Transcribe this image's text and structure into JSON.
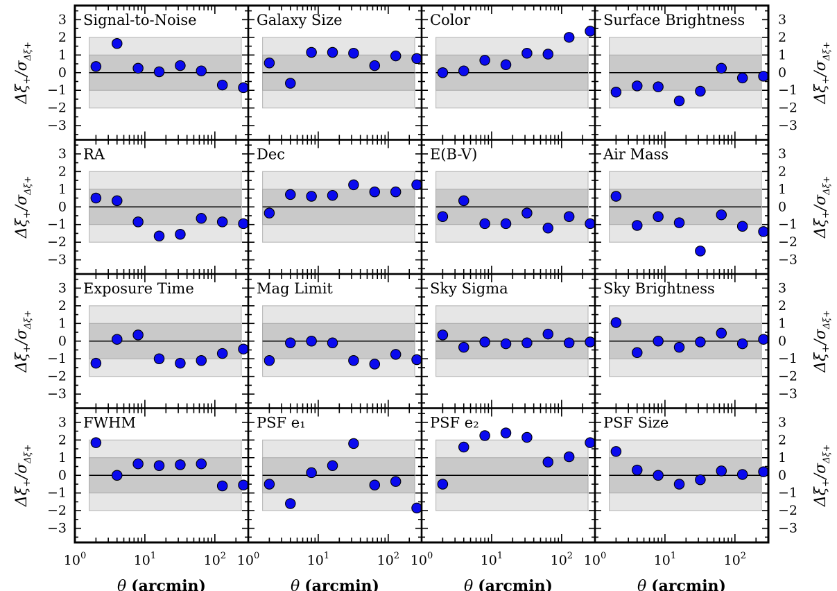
{
  "figure": {
    "xlabel_symbol": "θ",
    "xlabel_text": "(arcmin)",
    "ylabel_parts": {
      "delta": "Δξ",
      "plus": "+",
      "sigma": "/σ",
      "sub": "Δξ+"
    },
    "colors": {
      "marker_fill": "#0a0aee",
      "marker_edge": "#000000",
      "band_1sigma": "#c9c9c9",
      "band_2sigma": "#e6e6e6",
      "zero_line": "#000000"
    }
  },
  "chart_data": [
    {
      "type": "scatter",
      "title": "Signal-to-Noise",
      "x": [
        2,
        4,
        8,
        16,
        32,
        64,
        128,
        256
      ],
      "y": [
        0.35,
        1.65,
        0.25,
        0.05,
        0.4,
        0.1,
        -0.7,
        -0.85
      ],
      "xscale": "log",
      "xlim": [
        1,
        300
      ],
      "ylim": [
        -3.8,
        3.8
      ],
      "bands": [
        1,
        2
      ]
    },
    {
      "type": "scatter",
      "title": "Galaxy Size",
      "x": [
        2,
        4,
        8,
        16,
        32,
        64,
        128,
        256
      ],
      "y": [
        0.55,
        -0.6,
        1.15,
        1.15,
        1.1,
        0.4,
        0.95,
        0.8
      ],
      "xscale": "log",
      "xlim": [
        1,
        300
      ],
      "ylim": [
        -3.8,
        3.8
      ],
      "bands": [
        1,
        2
      ]
    },
    {
      "type": "scatter",
      "title": "Color",
      "x": [
        2,
        4,
        8,
        16,
        32,
        64,
        128,
        256
      ],
      "y": [
        0.0,
        0.1,
        0.7,
        0.45,
        1.1,
        1.05,
        2.0,
        2.35
      ],
      "xscale": "log",
      "xlim": [
        1,
        300
      ],
      "ylim": [
        -3.8,
        3.8
      ],
      "bands": [
        1,
        2
      ]
    },
    {
      "type": "scatter",
      "title": "Surface Brightness",
      "x": [
        2,
        4,
        8,
        16,
        32,
        64,
        128,
        256
      ],
      "y": [
        -1.1,
        -0.75,
        -0.8,
        -1.6,
        -1.05,
        0.25,
        -0.3,
        -0.2
      ],
      "xscale": "log",
      "xlim": [
        1,
        300
      ],
      "ylim": [
        -3.8,
        3.8
      ],
      "bands": [
        1,
        2
      ]
    },
    {
      "type": "scatter",
      "title": "RA",
      "x": [
        2,
        4,
        8,
        16,
        32,
        64,
        128,
        256
      ],
      "y": [
        0.5,
        0.35,
        -0.85,
        -1.65,
        -1.55,
        -0.65,
        -0.85,
        -0.95
      ],
      "xscale": "log",
      "xlim": [
        1,
        300
      ],
      "ylim": [
        -3.8,
        3.8
      ],
      "bands": [
        1,
        2
      ]
    },
    {
      "type": "scatter",
      "title": "Dec",
      "x": [
        2,
        4,
        8,
        16,
        32,
        64,
        128,
        256
      ],
      "y": [
        -0.35,
        0.7,
        0.6,
        0.65,
        1.25,
        0.85,
        0.85,
        1.25
      ],
      "xscale": "log",
      "xlim": [
        1,
        300
      ],
      "ylim": [
        -3.8,
        3.8
      ],
      "bands": [
        1,
        2
      ]
    },
    {
      "type": "scatter",
      "title": "E(B-V)",
      "x": [
        2,
        4,
        8,
        16,
        32,
        64,
        128,
        256
      ],
      "y": [
        -0.55,
        0.35,
        -0.95,
        -0.95,
        -0.35,
        -1.2,
        -0.55,
        -0.95
      ],
      "xscale": "log",
      "xlim": [
        1,
        300
      ],
      "ylim": [
        -3.8,
        3.8
      ],
      "bands": [
        1,
        2
      ]
    },
    {
      "type": "scatter",
      "title": "Air Mass",
      "x": [
        2,
        4,
        8,
        16,
        32,
        64,
        128,
        256
      ],
      "y": [
        0.6,
        -1.05,
        -0.55,
        -0.9,
        -2.5,
        -0.45,
        -1.1,
        -1.4
      ],
      "xscale": "log",
      "xlim": [
        1,
        300
      ],
      "ylim": [
        -3.8,
        3.8
      ],
      "bands": [
        1,
        2
      ]
    },
    {
      "type": "scatter",
      "title": "Exposure Time",
      "x": [
        2,
        4,
        8,
        16,
        32,
        64,
        128,
        256
      ],
      "y": [
        -1.25,
        0.1,
        0.35,
        -1.0,
        -1.25,
        -1.1,
        -0.7,
        -0.45
      ],
      "xscale": "log",
      "xlim": [
        1,
        300
      ],
      "ylim": [
        -3.8,
        3.8
      ],
      "bands": [
        1,
        2
      ]
    },
    {
      "type": "scatter",
      "title": "Mag Limit",
      "x": [
        2,
        4,
        8,
        16,
        32,
        64,
        128,
        256
      ],
      "y": [
        -1.1,
        -0.1,
        0.0,
        -0.1,
        -1.1,
        -1.3,
        -0.75,
        -1.05
      ],
      "xscale": "log",
      "xlim": [
        1,
        300
      ],
      "ylim": [
        -3.8,
        3.8
      ],
      "bands": [
        1,
        2
      ]
    },
    {
      "type": "scatter",
      "title": "Sky Sigma",
      "x": [
        2,
        4,
        8,
        16,
        32,
        64,
        128,
        256
      ],
      "y": [
        0.35,
        -0.35,
        -0.05,
        -0.15,
        -0.1,
        0.4,
        -0.1,
        -0.05
      ],
      "xscale": "log",
      "xlim": [
        1,
        300
      ],
      "ylim": [
        -3.8,
        3.8
      ],
      "bands": [
        1,
        2
      ]
    },
    {
      "type": "scatter",
      "title": "Sky Brightness",
      "x": [
        2,
        4,
        8,
        16,
        32,
        64,
        128,
        256
      ],
      "y": [
        1.05,
        -0.65,
        0.0,
        -0.35,
        -0.05,
        0.45,
        -0.15,
        0.1
      ],
      "xscale": "log",
      "xlim": [
        1,
        300
      ],
      "ylim": [
        -3.8,
        3.8
      ],
      "bands": [
        1,
        2
      ]
    },
    {
      "type": "scatter",
      "title": "FWHM",
      "x": [
        2,
        4,
        8,
        16,
        32,
        64,
        128,
        256
      ],
      "y": [
        1.85,
        0.0,
        0.65,
        0.55,
        0.6,
        0.65,
        -0.6,
        -0.55
      ],
      "xscale": "log",
      "xlim": [
        1,
        300
      ],
      "ylim": [
        -3.8,
        3.8
      ],
      "bands": [
        1,
        2
      ]
    },
    {
      "type": "scatter",
      "title": "PSF e₁",
      "x": [
        2,
        4,
        8,
        16,
        32,
        64,
        128,
        256
      ],
      "y": [
        -0.5,
        -1.6,
        0.15,
        0.55,
        1.8,
        -0.55,
        -0.35,
        -1.85
      ],
      "xscale": "log",
      "xlim": [
        1,
        300
      ],
      "ylim": [
        -3.8,
        3.8
      ],
      "bands": [
        1,
        2
      ]
    },
    {
      "type": "scatter",
      "title": "PSF e₂",
      "x": [
        2,
        4,
        8,
        16,
        32,
        64,
        128,
        256
      ],
      "y": [
        -0.5,
        1.6,
        2.25,
        2.4,
        2.15,
        0.75,
        1.05,
        1.85
      ],
      "xscale": "log",
      "xlim": [
        1,
        300
      ],
      "ylim": [
        -3.8,
        3.8
      ],
      "bands": [
        1,
        2
      ]
    },
    {
      "type": "scatter",
      "title": "PSF Size",
      "x": [
        2,
        4,
        8,
        16,
        32,
        64,
        128,
        256
      ],
      "y": [
        1.35,
        0.3,
        0.0,
        -0.5,
        -0.25,
        0.25,
        0.05,
        0.2
      ],
      "xscale": "log",
      "xlim": [
        1,
        300
      ],
      "ylim": [
        -3.8,
        3.8
      ],
      "bands": [
        1,
        2
      ]
    }
  ],
  "ytick_values": [
    -3,
    -2,
    -1,
    0,
    1,
    2,
    3
  ],
  "xtick_labels": [
    {
      "value": 1,
      "base": "10",
      "exp": "0"
    },
    {
      "value": 10,
      "base": "10",
      "exp": "1"
    },
    {
      "value": 100,
      "base": "10",
      "exp": "2"
    }
  ]
}
